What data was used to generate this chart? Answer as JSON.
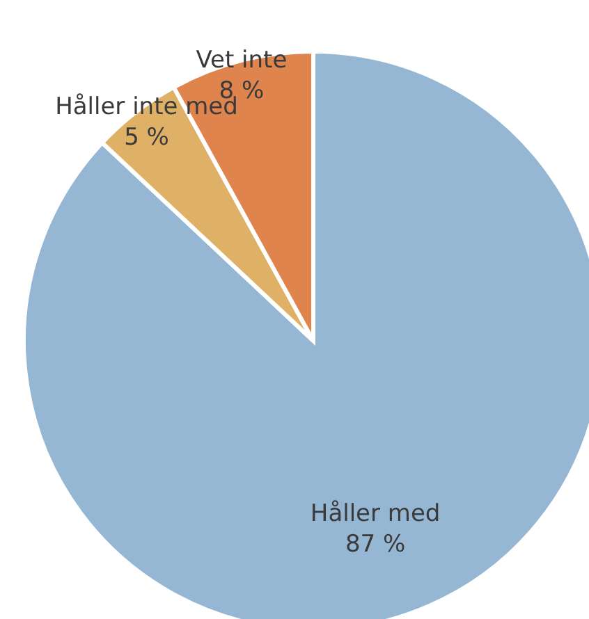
{
  "chart_data": {
    "type": "pie",
    "categories": [
      "Håller med",
      "Håller inte med",
      "Vet inte"
    ],
    "values": [
      87,
      5,
      8
    ],
    "value_labels": [
      "87 %",
      "5 %",
      "8 %"
    ],
    "colors": [
      "#95b7d3",
      "#deb167",
      "#e0844d"
    ],
    "legend": false
  }
}
